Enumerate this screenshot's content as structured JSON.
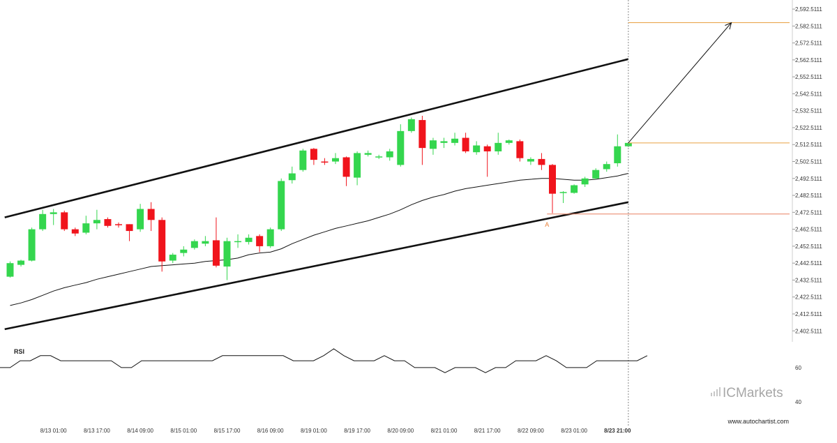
{
  "chart_data": {
    "type": "candlestick",
    "y_ticks": [
      "2,592.5111",
      "2,582.5111",
      "2,572.5111",
      "2,562.5111",
      "2,552.5111",
      "2,542.5111",
      "2,532.5111",
      "2,522.5111",
      "2,512.5111",
      "2,502.5111",
      "2,492.5111",
      "2,482.5111",
      "2,472.5111",
      "2,462.5111",
      "2,452.5111",
      "2,442.5111",
      "2,432.5111",
      "2,422.5111",
      "2,412.5111",
      "2,402.5111"
    ],
    "y_tick_values": [
      2592.5111,
      2582.5111,
      2572.5111,
      2562.5111,
      2552.5111,
      2542.5111,
      2532.5111,
      2522.5111,
      2512.5111,
      2502.5111,
      2492.5111,
      2482.5111,
      2472.5111,
      2462.5111,
      2452.5111,
      2442.5111,
      2432.5111,
      2422.5111,
      2412.5111,
      2402.5111
    ],
    "ylim": [
      2398.5,
      2595
    ],
    "x_ticks": [
      {
        "label": "8/13 01:00",
        "index": 4
      },
      {
        "label": "8/13 17:00",
        "index": 8
      },
      {
        "label": "8/14 09:00",
        "index": 12
      },
      {
        "label": "8/15 01:00",
        "index": 16
      },
      {
        "label": "8/15 17:00",
        "index": 20
      },
      {
        "label": "8/16 09:00",
        "index": 24
      },
      {
        "label": "8/19 01:00",
        "index": 28
      },
      {
        "label": "8/19 17:00",
        "index": 32
      },
      {
        "label": "8/20 09:00",
        "index": 36
      },
      {
        "label": "8/21 01:00",
        "index": 40
      },
      {
        "label": "8/21 17:00",
        "index": 44
      },
      {
        "label": "8/22 09:00",
        "index": 48
      },
      {
        "label": "8/23 01:00",
        "index": 52
      },
      {
        "label": "8/23 21:00",
        "index": 56,
        "bold": true
      }
    ],
    "candles": [
      [
        2434.5,
        2442.5,
        2434.0,
        2443.5
      ],
      [
        2441.5,
        2444.0,
        2440.5,
        2444.5
      ],
      [
        2444.0,
        2462.5,
        2443.5,
        2463.5
      ],
      [
        2462.5,
        2471.5,
        2461.5,
        2474.0
      ],
      [
        2471.5,
        2472.5,
        2465.0,
        2474.5
      ],
      [
        2472.5,
        2462.5,
        2461.5,
        2473.5
      ],
      [
        2462.5,
        2460.0,
        2458.5,
        2463.5
      ],
      [
        2460.5,
        2466.0,
        2459.5,
        2470.5
      ],
      [
        2466.0,
        2468.0,
        2462.5,
        2474.0
      ],
      [
        2468.5,
        2464.5,
        2463.5,
        2469.5
      ],
      [
        2465.5,
        2465.0,
        2463.5,
        2466.5
      ],
      [
        2465.5,
        2461.5,
        2455.5,
        2465.5
      ],
      [
        2462.5,
        2474.5,
        2461.0,
        2477.5
      ],
      [
        2474.5,
        2468.0,
        2461.5,
        2478.5
      ],
      [
        2468.0,
        2443.5,
        2437.5,
        2469.5
      ],
      [
        2444.0,
        2447.5,
        2442.5,
        2448.5
      ],
      [
        2448.5,
        2450.5,
        2446.5,
        2452.5
      ],
      [
        2451.5,
        2455.5,
        2450.5,
        2456.5
      ],
      [
        2454.0,
        2455.5,
        2452.5,
        2458.5
      ],
      [
        2456.0,
        2441.0,
        2440.0,
        2469.5
      ],
      [
        2440.5,
        2455.5,
        2432.5,
        2457.5
      ],
      [
        2455.5,
        2455.5,
        2451.5,
        2459.5
      ],
      [
        2455.0,
        2457.5,
        2453.5,
        2459.5
      ],
      [
        2458.5,
        2452.5,
        2449.0,
        2459.5
      ],
      [
        2452.5,
        2462.5,
        2451.5,
        2463.5
      ],
      [
        2462.5,
        2491.0,
        2461.5,
        2492.5
      ],
      [
        2491.5,
        2495.5,
        2489.5,
        2499.5
      ],
      [
        2497.5,
        2509.0,
        2496.5,
        2510.0
      ],
      [
        2510.0,
        2503.5,
        2500.5,
        2510.5
      ],
      [
        2502.5,
        2502.0,
        2500.5,
        2504.5
      ],
      [
        2502.5,
        2504.5,
        2501.0,
        2507.5
      ],
      [
        2505.0,
        2493.5,
        2488.0,
        2505.5
      ],
      [
        2493.0,
        2507.5,
        2488.5,
        2508.5
      ],
      [
        2506.5,
        2507.5,
        2505.5,
        2509.0
      ],
      [
        2505.5,
        2505.5,
        2504.0,
        2506.5
      ],
      [
        2505.0,
        2508.5,
        2503.0,
        2510.0
      ],
      [
        2500.5,
        2520.5,
        2499.5,
        2524.5
      ],
      [
        2520.5,
        2527.5,
        2519.5,
        2528.5
      ],
      [
        2527.0,
        2510.5,
        2500.5,
        2529.5
      ],
      [
        2510.0,
        2515.0,
        2506.5,
        2516.5
      ],
      [
        2513.5,
        2514.5,
        2510.5,
        2516.5
      ],
      [
        2513.5,
        2516.0,
        2512.0,
        2519.5
      ],
      [
        2516.5,
        2508.5,
        2507.5,
        2519.5
      ],
      [
        2508.0,
        2512.0,
        2506.5,
        2514.5
      ],
      [
        2511.5,
        2508.5,
        2493.5,
        2512.5
      ],
      [
        2508.5,
        2513.5,
        2506.5,
        2519.5
      ],
      [
        2513.5,
        2515.0,
        2512.5,
        2515.5
      ],
      [
        2514.5,
        2504.5,
        2502.5,
        2515.5
      ],
      [
        2502.5,
        2504.0,
        2500.5,
        2505.0
      ],
      [
        2504.0,
        2500.5,
        2497.5,
        2507.5
      ],
      [
        2500.5,
        2483.5,
        2472.0,
        2501.0
      ],
      [
        2484.5,
        2484.5,
        2478.0,
        2485.0
      ],
      [
        2484.0,
        2488.5,
        2483.5,
        2489.0
      ],
      [
        2489.0,
        2492.5,
        2487.5,
        2493.5
      ],
      [
        2492.5,
        2497.5,
        2492.0,
        2498.5
      ],
      [
        2498.0,
        2501.0,
        2496.5,
        2502.5
      ],
      [
        2501.5,
        2511.5,
        2499.5,
        2518.5
      ],
      [
        2511.5,
        2513.5,
        2511.0,
        2514.0
      ]
    ],
    "ma": [
      2417.5,
      2419.0,
      2421.0,
      2423.5,
      2426.0,
      2428.0,
      2429.5,
      2431.0,
      2433.0,
      2434.5,
      2436.0,
      2437.5,
      2439.0,
      2440.5,
      2441.0,
      2441.5,
      2442.0,
      2442.5,
      2443.5,
      2444.0,
      2444.5,
      2445.5,
      2447.5,
      2448.5,
      2449.0,
      2451.0,
      2454.0,
      2456.5,
      2459.0,
      2461.0,
      2463.0,
      2464.5,
      2466.0,
      2467.5,
      2469.5,
      2471.5,
      2474.0,
      2477.0,
      2479.5,
      2481.5,
      2483.0,
      2485.0,
      2486.5,
      2487.5,
      2488.5,
      2489.5,
      2490.5,
      2491.5,
      2492.0,
      2492.5,
      2492.5,
      2492.0,
      2491.5,
      2491.5,
      2492.0,
      2493.0,
      2494.0,
      2495.5
    ],
    "channel": {
      "upper": {
        "from": {
          "index": -0.5,
          "value": 2469.5
        },
        "to": {
          "index": 57,
          "value": 2563.0
        }
      },
      "lower": {
        "from": {
          "index": -0.5,
          "value": 2403.5
        },
        "to": {
          "index": 57,
          "value": 2478.5
        }
      }
    },
    "levels": [
      {
        "name": "target",
        "value": 2584.5,
        "from_index": 57,
        "color": "#e8a040"
      },
      {
        "name": "current",
        "value": 2513.5,
        "from_index": 57,
        "color": "#e8a040"
      },
      {
        "name": "pattern-point-a",
        "value": 2471.5,
        "from_index": 49.5,
        "color": "#e88060"
      }
    ],
    "pattern_label": {
      "text": "A",
      "index": 49.5,
      "value": 2469.0
    },
    "forecast_arrow": {
      "from": {
        "index": 57,
        "value": 2513.5
      },
      "to": {
        "index": 66.5,
        "value": 2584.5
      }
    },
    "breakout_time_index": 57,
    "rsi": {
      "title": "RSI",
      "y_ticks": [
        "60",
        "40"
      ],
      "y_tick_values": [
        60,
        40
      ],
      "ylim": [
        35,
        80
      ],
      "values": [
        60,
        60,
        64,
        64,
        67,
        67,
        64,
        64,
        64,
        64,
        64,
        64,
        60,
        60,
        64,
        64,
        64,
        64,
        64,
        64,
        64,
        64,
        67,
        67,
        67,
        67,
        67,
        67,
        67,
        64,
        64,
        64,
        67,
        71,
        67,
        64,
        64,
        64,
        67,
        64,
        64,
        60,
        60,
        60,
        57,
        60,
        60,
        60,
        57,
        60,
        60,
        64,
        64,
        64,
        67,
        64,
        60,
        60,
        60,
        64,
        64,
        64,
        64,
        64,
        67
      ]
    },
    "colors": {
      "up": "#34d64e",
      "down": "#f0141c",
      "channel": "#111111",
      "ma": "#111111",
      "grid_divider": "#888888"
    },
    "brand": "ICMarkets",
    "source": "www.autochartist.com"
  }
}
